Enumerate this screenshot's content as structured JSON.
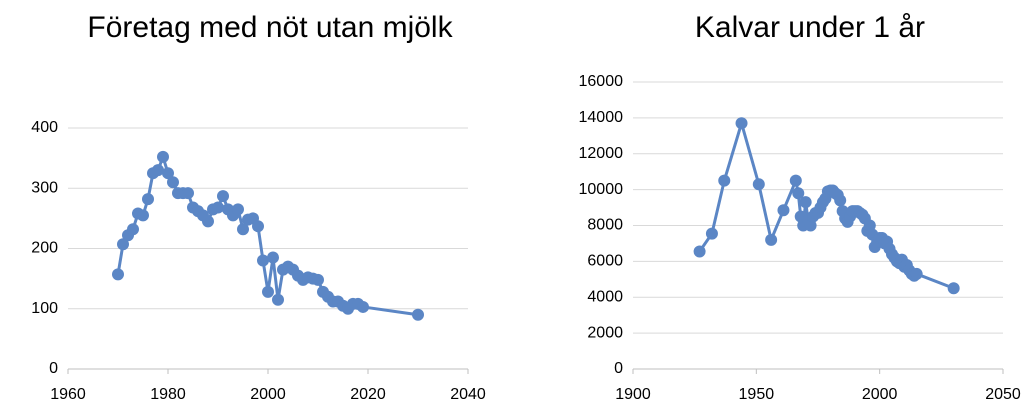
{
  "chart_data": [
    {
      "type": "line",
      "title": "Företag med nöt utan mjölk",
      "color": "#5b86c5",
      "grid": true,
      "x": [
        1970,
        1971,
        1972,
        1973,
        1974,
        1975,
        1976,
        1977,
        1978,
        1979,
        1980,
        1981,
        1982,
        1983,
        1984,
        1985,
        1986,
        1987,
        1988,
        1989,
        1990,
        1991,
        1992,
        1993,
        1994,
        1995,
        1996,
        1997,
        1998,
        1999,
        2000,
        2001,
        2002,
        2003,
        2004,
        2005,
        2006,
        2007,
        2008,
        2009,
        2010,
        2011,
        2012,
        2013,
        2014,
        2015,
        2016,
        2017,
        2018,
        2019,
        2030
      ],
      "values": [
        157,
        207,
        222,
        232,
        258,
        255,
        282,
        325,
        330,
        352,
        325,
        310,
        292,
        292,
        292,
        268,
        262,
        255,
        245,
        265,
        268,
        287,
        265,
        255,
        265,
        232,
        248,
        250,
        237,
        180,
        128,
        185,
        115,
        165,
        170,
        165,
        155,
        148,
        152,
        150,
        148,
        128,
        120,
        112,
        112,
        105,
        100,
        108,
        108,
        103,
        90
      ],
      "xlim": [
        1960,
        2040
      ],
      "xticks": [
        1960,
        1980,
        2000,
        2020,
        2040
      ],
      "ylim": [
        0,
        400
      ],
      "yticks": [
        0,
        100,
        200,
        300,
        400
      ]
    },
    {
      "type": "line",
      "title": "Kalvar under 1 år",
      "color": "#5b86c5",
      "grid": true,
      "x": [
        1927,
        1932,
        1937,
        1944,
        1951,
        1956,
        1961,
        1966,
        1967,
        1968,
        1969,
        1970,
        1971,
        1972,
        1973,
        1974,
        1975,
        1976,
        1977,
        1978,
        1979,
        1980,
        1981,
        1982,
        1983,
        1984,
        1985,
        1986,
        1987,
        1988,
        1989,
        1990,
        1991,
        1992,
        1993,
        1994,
        1995,
        1996,
        1997,
        1998,
        1999,
        2000,
        2001,
        2002,
        2003,
        2004,
        2005,
        2006,
        2007,
        2008,
        2009,
        2010,
        2011,
        2012,
        2013,
        2014,
        2015,
        2030
      ],
      "values": [
        6550,
        7550,
        10500,
        13700,
        10300,
        7200,
        8850,
        10500,
        9800,
        8500,
        8000,
        9300,
        8300,
        8000,
        8500,
        8700,
        8700,
        9000,
        9300,
        9500,
        9900,
        9950,
        9950,
        9800,
        9700,
        9400,
        8800,
        8400,
        8200,
        8500,
        8800,
        8800,
        8800,
        8700,
        8600,
        8400,
        7700,
        8000,
        7500,
        6800,
        7100,
        7300,
        7300,
        7000,
        7100,
        6700,
        6400,
        6200,
        6000,
        5900,
        6100,
        5700,
        5800,
        5500,
        5300,
        5200,
        5300,
        4500
      ],
      "xlim": [
        1900,
        2050
      ],
      "xticks": [
        1900,
        1950,
        2000,
        2050
      ],
      "ylim": [
        0,
        16000
      ],
      "yticks": [
        0,
        2000,
        4000,
        6000,
        8000,
        10000,
        12000,
        14000,
        16000
      ]
    }
  ]
}
